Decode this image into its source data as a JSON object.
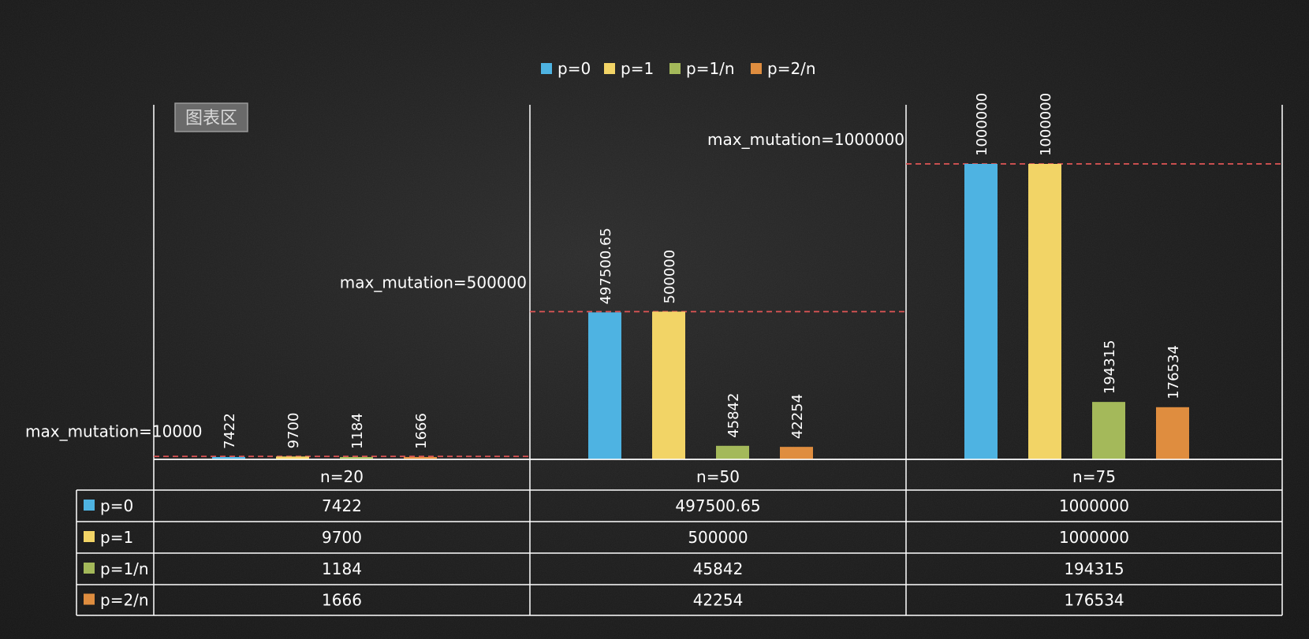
{
  "chart_area_tag": "图表区",
  "colors": {
    "p0": "#4eb3e2",
    "p1": "#f2d466",
    "p1n": "#a4b95a",
    "p2n": "#df8d3f",
    "ref_line": "#e05555",
    "grid": "#ffffff"
  },
  "chart_data": {
    "type": "bar",
    "categories": [
      "n=20",
      "n=50",
      "n=75"
    ],
    "series": [
      {
        "name": "p=0",
        "color_key": "p0",
        "values": [
          7422,
          497500.65,
          1000000
        ],
        "labels": [
          "7422",
          "497500.65",
          "1000000"
        ]
      },
      {
        "name": "p=1",
        "color_key": "p1",
        "values": [
          9700,
          500000,
          1000000
        ],
        "labels": [
          "9700",
          "500000",
          "1000000"
        ]
      },
      {
        "name": "p=1/n",
        "color_key": "p1n",
        "values": [
          1184,
          45842,
          194315
        ],
        "labels": [
          "1184",
          "45842",
          "194315"
        ]
      },
      {
        "name": "p=2/n",
        "color_key": "p2n",
        "values": [
          1666,
          42254,
          176534
        ],
        "labels": [
          "1666",
          "42254",
          "176534"
        ]
      }
    ],
    "reference_lines": [
      {
        "category": "n=20",
        "value": 10000,
        "label": "max_mutation=10000"
      },
      {
        "category": "n=50",
        "value": 500000,
        "label": "max_mutation=500000"
      },
      {
        "category": "n=75",
        "value": 1000000,
        "label": "max_mutation=1000000"
      }
    ],
    "ylim": [
      0,
      1000000
    ],
    "legend": "top-center",
    "data_table": true
  }
}
